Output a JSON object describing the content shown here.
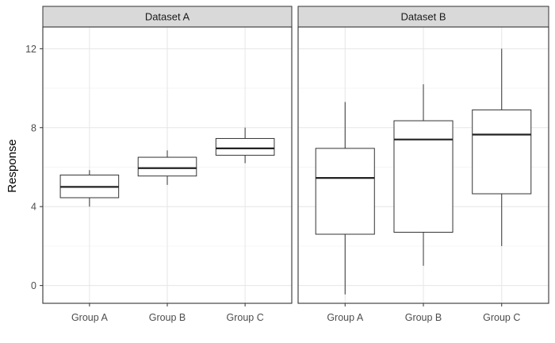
{
  "chart_data": {
    "type": "boxplot",
    "ylabel": "Response",
    "xlabel": "",
    "ylim": [
      -0.9,
      13.1
    ],
    "yticks": [
      0,
      4,
      8,
      12
    ],
    "grid": true,
    "categories": [
      "Group A",
      "Group B",
      "Group C"
    ],
    "panels": [
      {
        "name": "Dataset A",
        "boxes": [
          {
            "category": "Group A",
            "min": 4.0,
            "q1": 4.45,
            "median": 5.0,
            "q3": 5.6,
            "max": 5.85
          },
          {
            "category": "Group B",
            "min": 5.1,
            "q1": 5.55,
            "median": 5.95,
            "q3": 6.5,
            "max": 6.85
          },
          {
            "category": "Group C",
            "min": 6.2,
            "q1": 6.6,
            "median": 6.95,
            "q3": 7.45,
            "max": 8.0
          }
        ]
      },
      {
        "name": "Dataset B",
        "boxes": [
          {
            "category": "Group A",
            "min": -0.45,
            "q1": 2.6,
            "median": 5.45,
            "q3": 6.95,
            "max": 9.3
          },
          {
            "category": "Group B",
            "min": 1.0,
            "q1": 2.7,
            "median": 7.4,
            "q3": 8.35,
            "max": 10.2
          },
          {
            "category": "Group C",
            "min": 2.0,
            "q1": 4.65,
            "median": 7.65,
            "q3": 8.9,
            "max": 12.0
          }
        ]
      }
    ]
  }
}
